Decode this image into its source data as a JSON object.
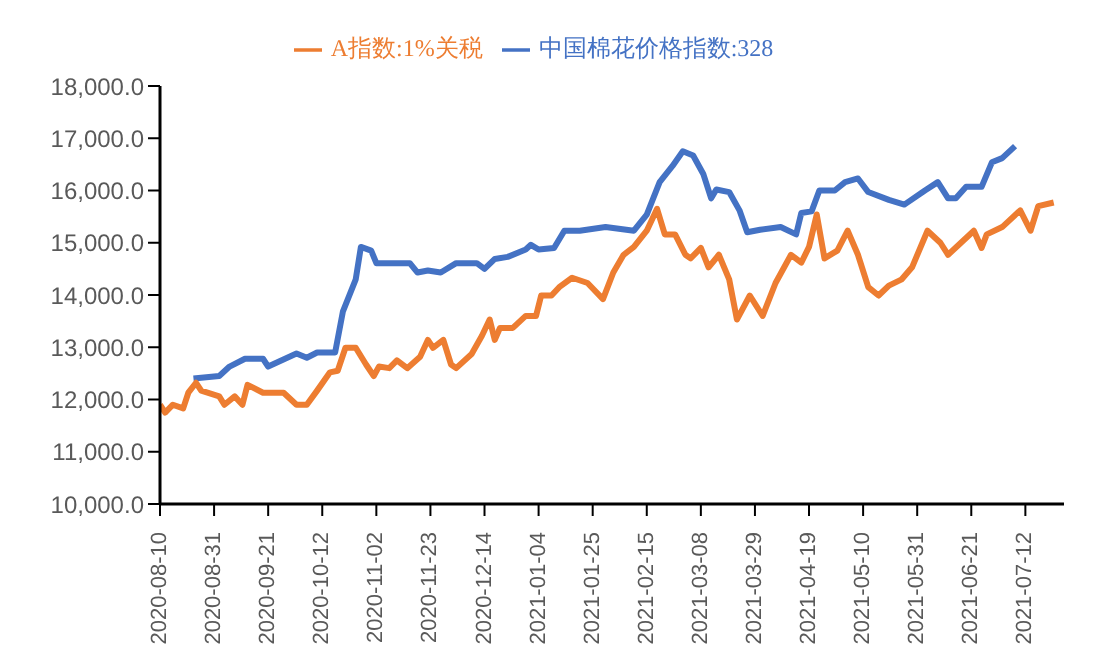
{
  "chart_data": {
    "type": "line",
    "legend": "top",
    "grid": false,
    "marker": "none",
    "line_style": "solid",
    "xlim": [
      "2020-08-10",
      "2021-07-27"
    ],
    "xticks": [
      "2020-08-10",
      "2020-08-31",
      "2020-09-21",
      "2020-10-12",
      "2020-11-02",
      "2020-11-23",
      "2020-12-14",
      "2021-01-04",
      "2021-01-25",
      "2021-02-15",
      "2021-03-08",
      "2021-03-29",
      "2021-04-19",
      "2021-05-10",
      "2021-05-31",
      "2021-06-21",
      "2021-07-12"
    ],
    "ylim": [
      10000,
      18000
    ],
    "yticks": [
      {
        "value": 10000,
        "label": "10,000.0"
      },
      {
        "value": 11000,
        "label": "11,000.0"
      },
      {
        "value": 12000,
        "label": "12,000.0"
      },
      {
        "value": 13000,
        "label": "13,000.0"
      },
      {
        "value": 14000,
        "label": "14,000.0"
      },
      {
        "value": 15000,
        "label": "15,000.0"
      },
      {
        "value": 16000,
        "label": "16,000.0"
      },
      {
        "value": 17000,
        "label": "17,000.0"
      },
      {
        "value": 18000,
        "label": "18,000.0"
      }
    ],
    "series": [
      {
        "name": "中国棉花价格指数:328",
        "color": "#4472c4",
        "x": [
          "2020-08-23",
          "2020-09-02",
          "2020-09-06",
          "2020-09-12",
          "2020-09-19",
          "2020-09-21",
          "2020-10-02",
          "2020-10-06",
          "2020-10-10",
          "2020-10-17",
          "2020-10-20",
          "2020-10-25",
          "2020-10-27",
          "2020-10-31",
          "2020-11-02",
          "2020-11-15",
          "2020-11-18",
          "2020-11-22",
          "2020-11-27",
          "2020-12-03",
          "2020-12-11",
          "2020-12-14",
          "2020-12-18",
          "2020-12-23",
          "2020-12-30",
          "2021-01-01",
          "2021-01-04",
          "2021-01-10",
          "2021-01-14",
          "2021-01-20",
          "2021-01-30",
          "2021-02-10",
          "2021-02-15",
          "2021-02-20",
          "2021-02-25",
          "2021-03-01",
          "2021-03-05",
          "2021-03-09",
          "2021-03-12",
          "2021-03-14",
          "2021-03-19",
          "2021-03-23",
          "2021-03-26",
          "2021-03-31",
          "2021-04-08",
          "2021-04-14",
          "2021-04-16",
          "2021-04-20",
          "2021-04-23",
          "2021-04-29",
          "2021-05-03",
          "2021-05-08",
          "2021-05-12",
          "2021-05-20",
          "2021-05-26",
          "2021-06-03",
          "2021-06-08",
          "2021-06-12",
          "2021-06-15",
          "2021-06-19",
          "2021-06-25",
          "2021-06-29",
          "2021-07-03",
          "2021-07-08"
        ],
        "values": [
          12400,
          12450,
          12630,
          12780,
          12780,
          12630,
          12880,
          12800,
          12900,
          12900,
          13680,
          14300,
          14920,
          14850,
          14610,
          14610,
          14430,
          14470,
          14430,
          14610,
          14610,
          14500,
          14690,
          14730,
          14870,
          14960,
          14870,
          14900,
          15230,
          15230,
          15300,
          15230,
          15540,
          16160,
          16470,
          16750,
          16670,
          16310,
          15850,
          16020,
          15970,
          15620,
          15200,
          15250,
          15300,
          15160,
          15570,
          15600,
          16000,
          16000,
          16160,
          16230,
          15970,
          15820,
          15730,
          16000,
          16160,
          15850,
          15850,
          16070,
          16070,
          16540,
          16620,
          16850
        ]
      },
      {
        "name": "A指数:1%关税",
        "color": "#ed7d31",
        "x": [
          "2020-08-10",
          "2020-08-12",
          "2020-08-15",
          "2020-08-19",
          "2020-08-21",
          "2020-08-24",
          "2020-08-26",
          "2020-09-02",
          "2020-09-04",
          "2020-09-08",
          "2020-09-11",
          "2020-09-13",
          "2020-09-19",
          "2020-09-27",
          "2020-10-02",
          "2020-10-06",
          "2020-10-10",
          "2020-10-15",
          "2020-10-18",
          "2020-10-21",
          "2020-10-25",
          "2020-10-29",
          "2020-11-01",
          "2020-11-03",
          "2020-11-07",
          "2020-11-10",
          "2020-11-14",
          "2020-11-19",
          "2020-11-22",
          "2020-11-24",
          "2020-11-28",
          "2020-12-01",
          "2020-12-03",
          "2020-12-09",
          "2020-12-13",
          "2020-12-16",
          "2020-12-18",
          "2020-12-20",
          "2020-12-25",
          "2020-12-30",
          "2021-01-03",
          "2021-01-05",
          "2021-01-09",
          "2021-01-12",
          "2021-01-17",
          "2021-01-23",
          "2021-01-29",
          "2021-02-02",
          "2021-02-06",
          "2021-02-10",
          "2021-02-15",
          "2021-02-19",
          "2021-02-22",
          "2021-02-26",
          "2021-03-02",
          "2021-03-04",
          "2021-03-08",
          "2021-03-11",
          "2021-03-15",
          "2021-03-19",
          "2021-03-22",
          "2021-03-27",
          "2021-04-01",
          "2021-04-06",
          "2021-04-12",
          "2021-04-16",
          "2021-04-19",
          "2021-04-22",
          "2021-04-25",
          "2021-04-30",
          "2021-05-04",
          "2021-05-08",
          "2021-05-12",
          "2021-05-16",
          "2021-05-20",
          "2021-05-25",
          "2021-05-29",
          "2021-06-04",
          "2021-06-09",
          "2021-06-12",
          "2021-06-17",
          "2021-06-22",
          "2021-06-25",
          "2021-06-27",
          "2021-07-03",
          "2021-07-10",
          "2021-07-14",
          "2021-07-17",
          "2021-07-23"
        ],
        "values": [
          11900,
          11750,
          11900,
          11830,
          12130,
          12320,
          12170,
          12060,
          11900,
          12060,
          11900,
          12280,
          12130,
          12130,
          11900,
          11900,
          12170,
          12520,
          12550,
          12990,
          12990,
          12670,
          12450,
          12630,
          12600,
          12750,
          12600,
          12820,
          13140,
          12990,
          13140,
          12670,
          12600,
          12870,
          13220,
          13530,
          13140,
          13370,
          13370,
          13600,
          13600,
          13990,
          13990,
          14150,
          14330,
          14230,
          13920,
          14430,
          14770,
          14920,
          15230,
          15650,
          15160,
          15160,
          14770,
          14700,
          14900,
          14530,
          14770,
          14300,
          13530,
          13990,
          13600,
          14230,
          14770,
          14620,
          14920,
          15540,
          14700,
          14850,
          15230,
          14770,
          14150,
          13990,
          14180,
          14300,
          14530,
          15230,
          15000,
          14770,
          15000,
          15230,
          14900,
          15160,
          15300,
          15620,
          15230,
          15700,
          15770
        ]
      }
    ]
  }
}
